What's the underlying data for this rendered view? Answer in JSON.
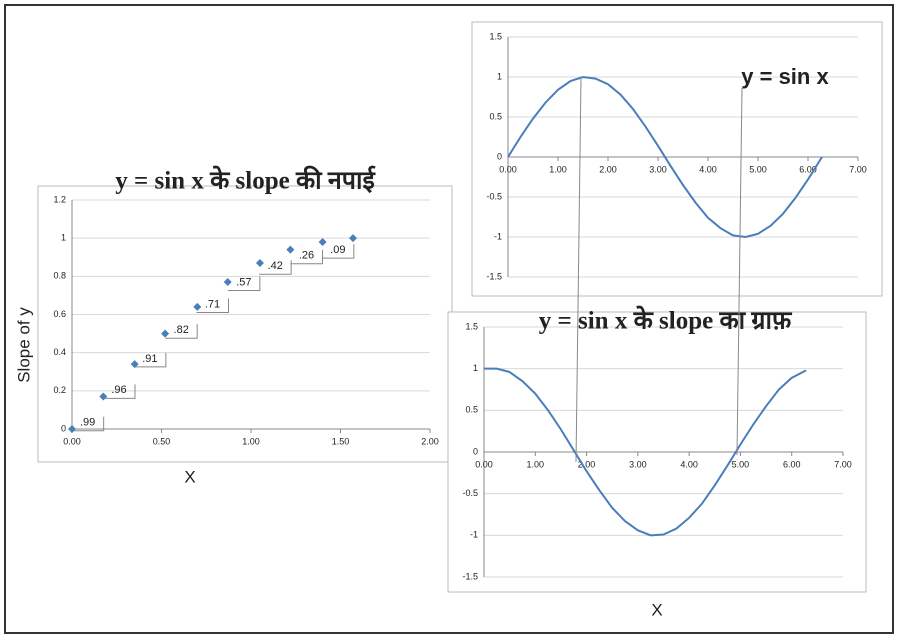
{
  "chart_data": [
    {
      "type": "scatter",
      "title": "y = sin x के slope की नपाई",
      "x_label": "X",
      "y_label": "Slope of y",
      "color": "#4a7ebb",
      "x": [
        0,
        0.175,
        0.35,
        0.52,
        0.7,
        0.87,
        1.05,
        1.22,
        1.4,
        1.57
      ],
      "values": [
        0,
        0.17,
        0.34,
        0.5,
        0.64,
        0.77,
        0.87,
        0.94,
        0.98,
        1.0
      ],
      "annotations": [
        ".99",
        ".96",
        ".91",
        ".82",
        ".71",
        ".57",
        ".42",
        ".26",
        ".09"
      ],
      "xlim": [
        0,
        2
      ],
      "xticks": [
        {
          "value": 0,
          "label": "0.00"
        },
        {
          "value": 0.5,
          "label": "0.50"
        },
        {
          "value": 1,
          "label": "1.00"
        },
        {
          "value": 1.5,
          "label": "1.50"
        },
        {
          "value": 2,
          "label": "2.00"
        }
      ],
      "ylim": [
        0,
        1.2
      ],
      "yticks": [
        0,
        0.2,
        0.4,
        0.6,
        0.8,
        1,
        1.2
      ],
      "grid": true
    },
    {
      "type": "line",
      "title": "y = sin x",
      "color": "#4a7ebb",
      "x": [
        0,
        0.25,
        0.5,
        0.75,
        1,
        1.25,
        1.5,
        1.75,
        2,
        2.25,
        2.5,
        2.75,
        3,
        3.25,
        3.5,
        3.75,
        4,
        4.25,
        4.5,
        4.75,
        5,
        5.25,
        5.5,
        5.75,
        6,
        6.28
      ],
      "values": [
        0,
        0.25,
        0.48,
        0.68,
        0.84,
        0.95,
        1.0,
        0.98,
        0.91,
        0.78,
        0.6,
        0.38,
        0.14,
        -0.11,
        -0.35,
        -0.57,
        -0.76,
        -0.89,
        -0.98,
        -1.0,
        -0.96,
        -0.86,
        -0.71,
        -0.51,
        -0.28,
        0
      ],
      "xlim": [
        0,
        7
      ],
      "xticks": [
        {
          "value": 0,
          "label": "0.00"
        },
        {
          "value": 1,
          "label": "1.00"
        },
        {
          "value": 2,
          "label": "2.00"
        },
        {
          "value": 3,
          "label": "3.00"
        },
        {
          "value": 4,
          "label": "4.00"
        },
        {
          "value": 5,
          "label": "5.00"
        },
        {
          "value": 6,
          "label": "6.00"
        },
        {
          "value": 7,
          "label": "7.00"
        }
      ],
      "ylim": [
        -1.5,
        1.5
      ],
      "yticks": [
        -1.5,
        -1,
        -0.5,
        0,
        0.5,
        1,
        1.5
      ],
      "grid": true
    },
    {
      "type": "line",
      "title": "y = sin x के slope का ग्राफ़",
      "x_label": "X",
      "color": "#4a7ebb",
      "x": [
        0,
        0.25,
        0.5,
        0.75,
        1,
        1.25,
        1.5,
        1.75,
        2,
        2.25,
        2.5,
        2.75,
        3,
        3.25,
        3.5,
        3.75,
        4,
        4.25,
        4.5,
        4.75,
        5,
        5.25,
        5.5,
        5.75,
        6,
        6.28
      ],
      "values": [
        1.0,
        1.0,
        0.96,
        0.85,
        0.7,
        0.5,
        0.27,
        0.02,
        -0.23,
        -0.46,
        -0.67,
        -0.83,
        -0.94,
        -1.0,
        -0.99,
        -0.92,
        -0.79,
        -0.62,
        -0.4,
        -0.16,
        0.09,
        0.33,
        0.55,
        0.75,
        0.89,
        0.98
      ],
      "xlim": [
        0,
        7
      ],
      "xticks": [
        {
          "value": 0,
          "label": "0.00"
        },
        {
          "value": 1,
          "label": "1.00"
        },
        {
          "value": 2,
          "label": "2.00"
        },
        {
          "value": 3,
          "label": "3.00"
        },
        {
          "value": 4,
          "label": "4.00"
        },
        {
          "value": 5,
          "label": "5.00"
        },
        {
          "value": 6,
          "label": "6.00"
        },
        {
          "value": 7,
          "label": "7.00"
        }
      ],
      "ylim": [
        -1.5,
        1.5
      ],
      "yticks": [
        -1.5,
        -1,
        -0.5,
        0,
        0.5,
        1,
        1.5
      ],
      "grid": true
    }
  ]
}
